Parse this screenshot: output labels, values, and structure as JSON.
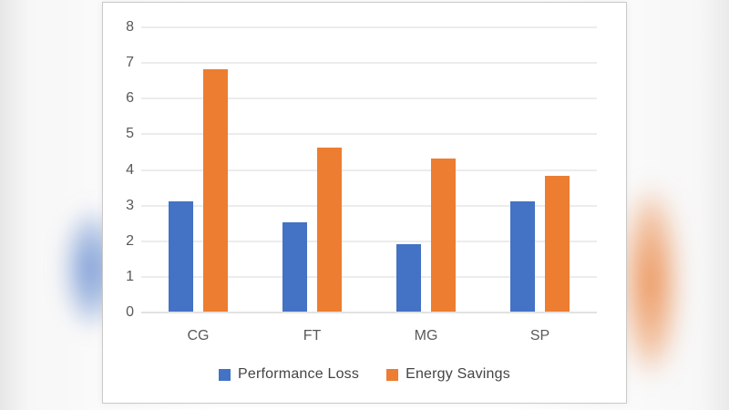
{
  "chart_data": {
    "type": "bar",
    "title": "",
    "xlabel": "",
    "ylabel": "",
    "categories": [
      "CG",
      "FT",
      "MG",
      "SP"
    ],
    "series": [
      {
        "name": "Performance Loss",
        "color": "#4472C4",
        "values": [
          3.1,
          2.5,
          1.9,
          3.1
        ]
      },
      {
        "name": "Energy Savings",
        "color": "#ED7D31",
        "values": [
          6.8,
          4.6,
          4.3,
          3.8
        ]
      }
    ],
    "ylim": [
      0,
      8
    ],
    "yticks": [
      0,
      1,
      2,
      3,
      4,
      5,
      6,
      7,
      8
    ],
    "grid": true,
    "legend_position": "bottom",
    "tick_label_color": "#595959",
    "gridline_color": "#d9d9d9",
    "axisline_color": "#c6c6c6",
    "plot_background": "#ffffff"
  },
  "background": {
    "left_blob_color": "#4E7AC8",
    "right_blob_color": "#E9803A"
  }
}
